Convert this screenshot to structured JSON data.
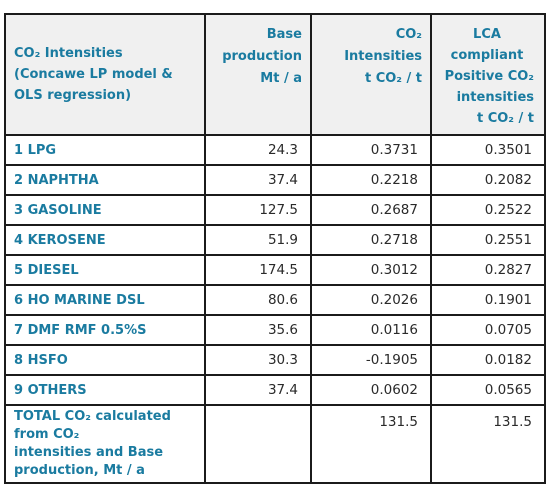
{
  "header": {
    "title_lines": [
      "CO₂ Intensities",
      "(Concawe LP model &",
      "OLS regression)"
    ],
    "base": [
      "Base",
      "production",
      "Mt / a"
    ],
    "co2": [
      "CO₂",
      "Intensities",
      "t CO₂ / t"
    ],
    "lca": [
      "LCA",
      "compliant",
      "Positive CO₂",
      "intensities",
      "t CO₂ / t"
    ]
  },
  "rows": [
    {
      "label": "1 LPG",
      "base": "24.3",
      "co2": "0.3731",
      "lca": "0.3501"
    },
    {
      "label": "2 NAPHTHA",
      "base": "37.4",
      "co2": "0.2218",
      "lca": "0.2082"
    },
    {
      "label": "3 GASOLINE",
      "base": "127.5",
      "co2": "0.2687",
      "lca": "0.2522"
    },
    {
      "label": "4 KEROSENE",
      "base": "51.9",
      "co2": "0.2718",
      "lca": "0.2551"
    },
    {
      "label": "5 DIESEL",
      "base": "174.5",
      "co2": "0.3012",
      "lca": "0.2827"
    },
    {
      "label": "6 HO MARINE DSL",
      "base": "80.6",
      "co2": "0.2026",
      "lca": "0.1901"
    },
    {
      "label": "7 DMF RMF 0.5%S",
      "base": "35.6",
      "co2": "0.0116",
      "lca": "0.0705"
    },
    {
      "label": "8 HSFO",
      "base": "30.3",
      "co2": "-0.1905",
      "lca": "0.0182"
    },
    {
      "label": "9 OTHERS",
      "base": "37.4",
      "co2": "0.0602",
      "lca": "0.0565"
    }
  ],
  "total": {
    "label_lines": [
      "TOTAL CO₂ calculated from CO₂",
      "intensities and Base production, Mt / a"
    ],
    "co2": "131.5",
    "lca": "131.5"
  }
}
